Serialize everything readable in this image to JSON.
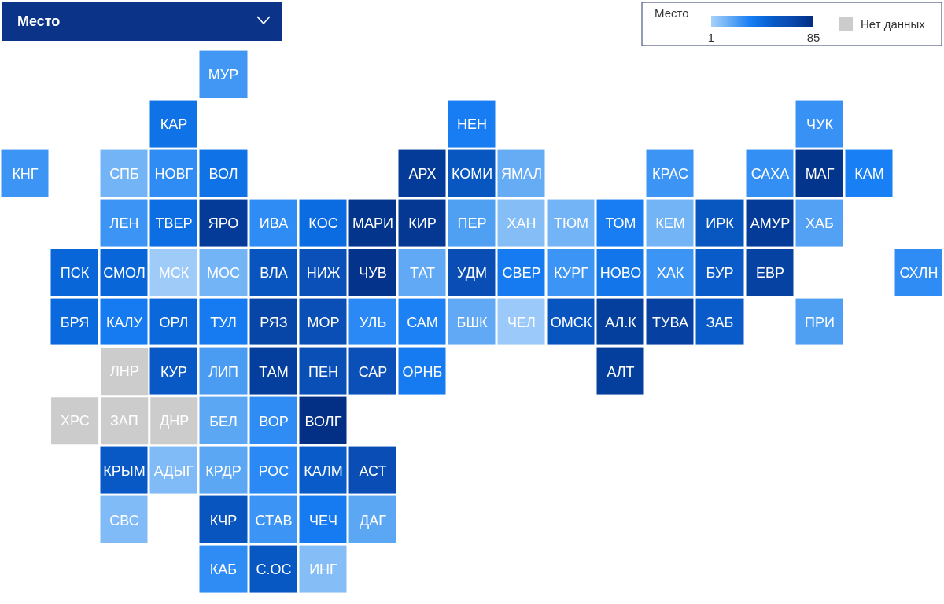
{
  "chart_data": {
    "type": "heatmap",
    "title": "Место",
    "clabel": "Место",
    "categories": [
      null,
      null,
      null,
      null,
      null,
      null,
      null,
      null,
      null,
      null,
      null,
      null,
      null,
      null,
      null,
      null,
      null,
      null,
      null
    ],
    "y_categories": [
      null,
      null,
      null,
      null,
      null,
      null,
      null,
      null,
      null,
      null,
      null
    ],
    "clim": [
      1,
      85
    ],
    "cticks": [
      1,
      85
    ],
    "colors": [
      "#a8d0fa",
      "#7ab8f6",
      "#4a9cf3",
      "#1a80f5",
      "#0a6ce0",
      "#0858c4",
      "#0a4eb5",
      "#053e9c",
      "#032c80"
    ],
    "annotations": [
      "Нет данных"
    ],
    "cells": [
      [
        null,
        null,
        null,
        null,
        24,
        null,
        null,
        null,
        null,
        null,
        null,
        null,
        null,
        null,
        null,
        null,
        null,
        null,
        null
      ],
      [
        null,
        null,
        null,
        40,
        null,
        null,
        null,
        null,
        null,
        34,
        null,
        null,
        null,
        null,
        null,
        null,
        26,
        null,
        null
      ],
      [
        25,
        null,
        13,
        28,
        40,
        null,
        null,
        null,
        76,
        56,
        16,
        null,
        null,
        25,
        null,
        27,
        80,
        33,
        null
      ],
      [
        null,
        null,
        25,
        42,
        76,
        28,
        43,
        80,
        78,
        21,
        9,
        13,
        34,
        13,
        56,
        76,
        20,
        null,
        null
      ],
      [
        null,
        46,
        46,
        3,
        13,
        57,
        62,
        81,
        17,
        64,
        35,
        25,
        38,
        25,
        52,
        72,
        null,
        null,
        28
      ],
      [
        null,
        44,
        35,
        45,
        35,
        70,
        63,
        29,
        32,
        17,
        4,
        57,
        74,
        73,
        52,
        null,
        21,
        null,
        null
      ],
      [
        null,
        null,
        null,
        53,
        22,
        74,
        63,
        62,
        35,
        null,
        null,
        null,
        74,
        null,
        null,
        null,
        null,
        null,
        null
      ],
      [
        null,
        null,
        null,
        null,
        18,
        28,
        83,
        null,
        null,
        null,
        null,
        null,
        null,
        null,
        null,
        null,
        null,
        null,
        null
      ],
      [
        null,
        null,
        53,
        10,
        18,
        29,
        52,
        64,
        null,
        null,
        null,
        null,
        null,
        null,
        null,
        null,
        null,
        null,
        null
      ],
      [
        null,
        null,
        10,
        null,
        57,
        25,
        35,
        18,
        null,
        null,
        null,
        null,
        null,
        null,
        null,
        null,
        null,
        null,
        null
      ],
      [
        null,
        null,
        null,
        null,
        28,
        54,
        9,
        null,
        null,
        null,
        null,
        null,
        null,
        null,
        null,
        null,
        null,
        null,
        null
      ]
    ],
    "cell_labels": [
      [
        null,
        null,
        null,
        null,
        "МУР",
        null,
        null,
        null,
        null,
        null,
        null,
        null,
        null,
        null,
        null,
        null,
        null,
        null,
        null
      ],
      [
        null,
        null,
        null,
        "КАР",
        null,
        null,
        null,
        null,
        null,
        "НЕН",
        null,
        null,
        null,
        null,
        null,
        null,
        "ЧУК",
        null,
        null
      ],
      [
        "КНГ",
        null,
        "СПБ",
        "НОВГ",
        "ВОЛ",
        null,
        null,
        null,
        "АРХ",
        "КОМИ",
        "ЯМАЛ",
        null,
        null,
        "КРАС",
        null,
        "САХА",
        "МАГ",
        "КАМ",
        null
      ],
      [
        null,
        null,
        "ЛЕН",
        "ТВЕР",
        "ЯРО",
        "ИВА",
        "КОС",
        "МАРИ",
        "КИР",
        "ПЕР",
        "ХАН",
        "ТЮМ",
        "ТОМ",
        "КЕМ",
        "ИРК",
        "АМУР",
        "ХАБ",
        null,
        null
      ],
      [
        null,
        "ПСК",
        "СМОЛ",
        "МСК",
        "МОС",
        "ВЛА",
        "НИЖ",
        "ЧУВ",
        "ТАТ",
        "УДМ",
        "СВЕР",
        "КУРГ",
        "НОВО",
        "ХАК",
        "БУР",
        "ЕВР",
        null,
        null,
        "СХЛН"
      ],
      [
        null,
        "БРЯ",
        "КАЛУ",
        "ОРЛ",
        "ТУЛ",
        "РЯЗ",
        "МОР",
        "УЛЬ",
        "САМ",
        "БШК",
        "ЧЕЛ",
        "ОМСК",
        "АЛ.К",
        "ТУВА",
        "ЗАБ",
        null,
        "ПРИ",
        null,
        null
      ],
      [
        null,
        null,
        "ЛНР",
        "КУР",
        "ЛИП",
        "ТАМ",
        "ПЕН",
        "САР",
        "ОРНБ",
        null,
        null,
        null,
        "АЛТ",
        null,
        null,
        null,
        null,
        null,
        null
      ],
      [
        null,
        "ХРС",
        "ЗАП",
        "ДНР",
        "БЕЛ",
        "ВОР",
        "ВОЛГ",
        null,
        null,
        null,
        null,
        null,
        null,
        null,
        null,
        null,
        null,
        null,
        null
      ],
      [
        null,
        null,
        "КРЫМ",
        "АДЫГ",
        "КРДР",
        "РОС",
        "КАЛМ",
        "АСТ",
        null,
        null,
        null,
        null,
        null,
        null,
        null,
        null,
        null,
        null,
        null
      ],
      [
        null,
        null,
        "СВС",
        null,
        "КЧР",
        "СТАВ",
        "ЧЕЧ",
        "ДАГ",
        null,
        null,
        null,
        null,
        null,
        null,
        null,
        null,
        null,
        null,
        null
      ],
      [
        null,
        null,
        null,
        null,
        "КАБ",
        "С.ОС",
        "ИНГ",
        null,
        null,
        null,
        null,
        null,
        null,
        null,
        null,
        null,
        null,
        null,
        null
      ]
    ]
  }
}
